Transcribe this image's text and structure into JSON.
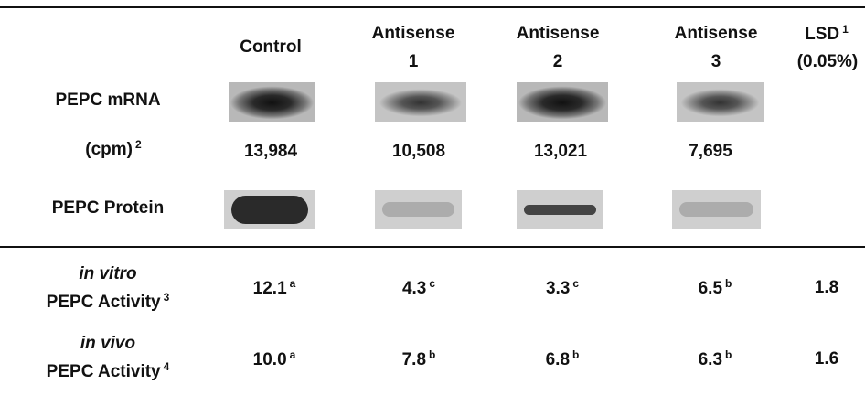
{
  "header": {
    "columns": [
      {
        "line1": "Control"
      },
      {
        "line1": "Antisense",
        "line2": "1"
      },
      {
        "line1": "Antisense",
        "line2": "2"
      },
      {
        "line1": "Antisense",
        "line2": "3"
      },
      {
        "line1": "LSD",
        "sup": "1",
        "line2": "(0.05%)"
      }
    ]
  },
  "rows": {
    "mrna": {
      "label": "PEPC mRNA"
    },
    "cpm": {
      "label": "(cpm)",
      "sup": "2",
      "values": [
        "13,984",
        "10,508",
        "13,021",
        "7,695"
      ]
    },
    "protein": {
      "label": "PEPC Protein"
    },
    "in_vitro": {
      "label_italic": "in vitro",
      "label": "PEPC Activity",
      "sup": "3",
      "values": [
        {
          "value": "12.1",
          "sup": "a"
        },
        {
          "value": "4.3",
          "sup": "c"
        },
        {
          "value": "3.3",
          "sup": "c"
        },
        {
          "value": "6.5",
          "sup": "b"
        }
      ],
      "lsd": "1.8"
    },
    "in_vivo": {
      "label_italic": "in vivo",
      "label": "PEPC Activity",
      "sup": "4",
      "values": [
        {
          "value": "10.0",
          "sup": "a"
        },
        {
          "value": "7.8",
          "sup": "b"
        },
        {
          "value": "6.8",
          "sup": "b"
        },
        {
          "value": "6.3",
          "sup": "b"
        }
      ],
      "lsd": "1.6"
    }
  }
}
